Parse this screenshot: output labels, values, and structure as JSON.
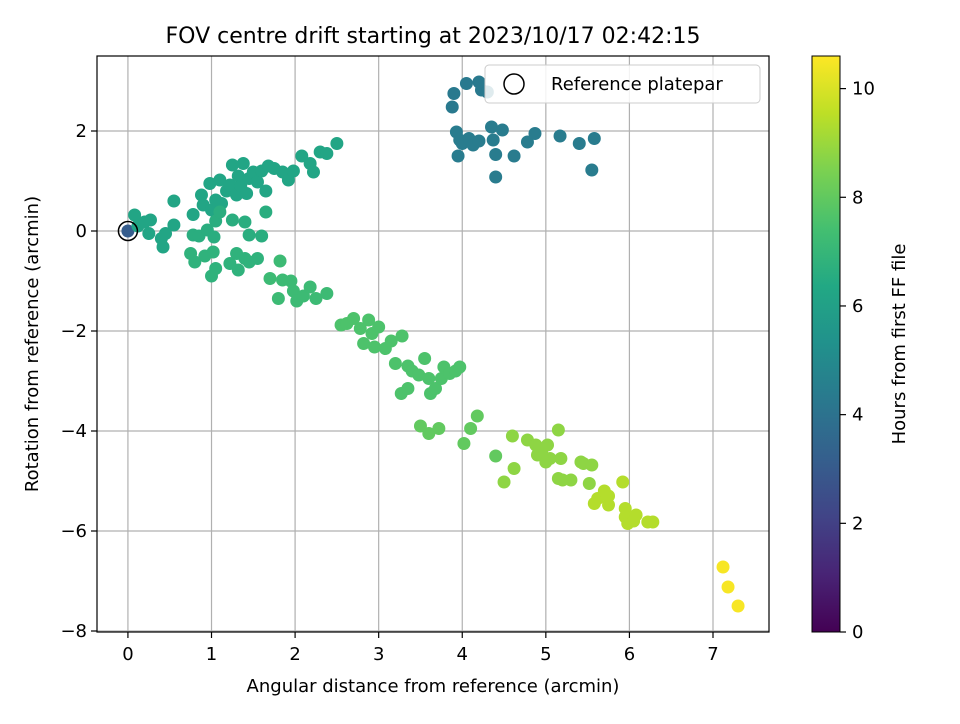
{
  "chart_data": {
    "type": "scatter",
    "title": "FOV centre drift starting at 2023/10/17 02:42:15",
    "xlabel": "Angular distance from reference (arcmin)",
    "ylabel": "Rotation from reference (arcmin)",
    "xlim": [
      -0.37,
      7.67
    ],
    "ylim": [
      -8.02,
      3.5
    ],
    "xticks": [
      "0",
      "1",
      "2",
      "3",
      "4",
      "5",
      "6",
      "7"
    ],
    "yticks": [
      "−8",
      "−6",
      "−4",
      "−2",
      "0",
      "2"
    ],
    "grid": true,
    "legend": {
      "label": "Reference platepar",
      "placement": "top-right"
    },
    "reference_point": {
      "x": 0,
      "y": 0
    },
    "colorbar": {
      "label": "Hours from first FF file",
      "colormap": "viridis",
      "range": [
        0,
        10.6
      ],
      "ticks": [
        "0",
        "2",
        "4",
        "6",
        "8",
        "10"
      ]
    },
    "series": [
      {
        "values": [
          {
            "x": 0.0,
            "y": 0.0,
            "t": 3.1
          },
          {
            "x": 3.9,
            "y": 2.75,
            "t": 4.3
          },
          {
            "x": 3.88,
            "y": 2.48,
            "t": 4.3
          },
          {
            "x": 4.05,
            "y": 2.95,
            "t": 4.3
          },
          {
            "x": 4.2,
            "y": 2.98,
            "t": 4.3
          },
          {
            "x": 4.23,
            "y": 2.82,
            "t": 4.3
          },
          {
            "x": 4.3,
            "y": 2.78,
            "t": 4.3
          },
          {
            "x": 3.93,
            "y": 1.98,
            "t": 4.4
          },
          {
            "x": 3.97,
            "y": 1.82,
            "t": 4.4
          },
          {
            "x": 4.0,
            "y": 1.75,
            "t": 4.4
          },
          {
            "x": 4.08,
            "y": 1.85,
            "t": 4.4
          },
          {
            "x": 4.13,
            "y": 1.72,
            "t": 4.4
          },
          {
            "x": 4.2,
            "y": 1.8,
            "t": 4.4
          },
          {
            "x": 3.95,
            "y": 1.5,
            "t": 4.4
          },
          {
            "x": 4.35,
            "y": 2.08,
            "t": 4.4
          },
          {
            "x": 4.37,
            "y": 1.82,
            "t": 4.4
          },
          {
            "x": 4.48,
            "y": 2.02,
            "t": 4.4
          },
          {
            "x": 4.4,
            "y": 1.53,
            "t": 4.4
          },
          {
            "x": 4.62,
            "y": 1.5,
            "t": 4.4
          },
          {
            "x": 4.4,
            "y": 1.08,
            "t": 4.4
          },
          {
            "x": 4.78,
            "y": 1.78,
            "t": 4.4
          },
          {
            "x": 4.87,
            "y": 1.95,
            "t": 4.4
          },
          {
            "x": 5.17,
            "y": 1.9,
            "t": 4.4
          },
          {
            "x": 5.4,
            "y": 1.75,
            "t": 4.4
          },
          {
            "x": 5.58,
            "y": 1.85,
            "t": 4.4
          },
          {
            "x": 5.55,
            "y": 1.22,
            "t": 4.4
          },
          {
            "x": 0.08,
            "y": 0.32,
            "t": 6.2
          },
          {
            "x": 0.12,
            "y": 0.1,
            "t": 6.2
          },
          {
            "x": 0.2,
            "y": 0.18,
            "t": 6.2
          },
          {
            "x": 0.27,
            "y": 0.22,
            "t": 6.2
          },
          {
            "x": 0.25,
            "y": -0.05,
            "t": 6.2
          },
          {
            "x": 0.4,
            "y": -0.15,
            "t": 6.2
          },
          {
            "x": 0.45,
            "y": -0.05,
            "t": 6.2
          },
          {
            "x": 0.42,
            "y": -0.32,
            "t": 6.2
          },
          {
            "x": 0.55,
            "y": 0.12,
            "t": 6.2
          },
          {
            "x": 0.55,
            "y": 0.6,
            "t": 6.2
          },
          {
            "x": 0.78,
            "y": 0.33,
            "t": 6.2
          },
          {
            "x": 0.88,
            "y": 0.72,
            "t": 6.2
          },
          {
            "x": 0.9,
            "y": 0.52,
            "t": 6.2
          },
          {
            "x": 1.0,
            "y": 0.42,
            "t": 6.2
          },
          {
            "x": 0.98,
            "y": 0.95,
            "t": 6.2
          },
          {
            "x": 1.05,
            "y": 0.62,
            "t": 6.2
          },
          {
            "x": 1.1,
            "y": 1.02,
            "t": 6.2
          },
          {
            "x": 1.12,
            "y": 0.55,
            "t": 6.2
          },
          {
            "x": 1.18,
            "y": 0.8,
            "t": 6.2
          },
          {
            "x": 1.22,
            "y": 0.92,
            "t": 6.2
          },
          {
            "x": 1.25,
            "y": 1.32,
            "t": 6.2
          },
          {
            "x": 1.3,
            "y": 0.72,
            "t": 6.2
          },
          {
            "x": 1.32,
            "y": 1.1,
            "t": 6.2
          },
          {
            "x": 1.35,
            "y": 0.9,
            "t": 6.2
          },
          {
            "x": 1.38,
            "y": 1.35,
            "t": 6.2
          },
          {
            "x": 1.42,
            "y": 0.75,
            "t": 6.2
          },
          {
            "x": 1.45,
            "y": 1.05,
            "t": 6.2
          },
          {
            "x": 1.5,
            "y": 1.18,
            "t": 6.2
          },
          {
            "x": 1.55,
            "y": 0.98,
            "t": 6.2
          },
          {
            "x": 1.6,
            "y": 1.2,
            "t": 6.2
          },
          {
            "x": 1.65,
            "y": 0.8,
            "t": 6.2
          },
          {
            "x": 1.68,
            "y": 1.3,
            "t": 6.2
          },
          {
            "x": 1.75,
            "y": 1.25,
            "t": 6.2
          },
          {
            "x": 1.85,
            "y": 1.18,
            "t": 6.2
          },
          {
            "x": 1.92,
            "y": 1.02,
            "t": 6.2
          },
          {
            "x": 1.98,
            "y": 1.2,
            "t": 6.2
          },
          {
            "x": 2.08,
            "y": 1.5,
            "t": 6.2
          },
          {
            "x": 2.18,
            "y": 1.35,
            "t": 6.2
          },
          {
            "x": 2.22,
            "y": 1.18,
            "t": 6.2
          },
          {
            "x": 2.3,
            "y": 1.58,
            "t": 6.2
          },
          {
            "x": 2.38,
            "y": 1.55,
            "t": 6.2
          },
          {
            "x": 2.5,
            "y": 1.75,
            "t": 6.2
          },
          {
            "x": 1.05,
            "y": 0.2,
            "t": 6.6
          },
          {
            "x": 1.1,
            "y": 0.38,
            "t": 6.6
          },
          {
            "x": 1.25,
            "y": 0.22,
            "t": 6.6
          },
          {
            "x": 1.4,
            "y": 0.18,
            "t": 6.6
          },
          {
            "x": 1.45,
            "y": -0.08,
            "t": 6.6
          },
          {
            "x": 1.6,
            "y": -0.1,
            "t": 6.6
          },
          {
            "x": 1.65,
            "y": 0.38,
            "t": 6.6
          },
          {
            "x": 0.78,
            "y": -0.08,
            "t": 6.6
          },
          {
            "x": 0.85,
            "y": -0.1,
            "t": 6.6
          },
          {
            "x": 0.95,
            "y": 0.02,
            "t": 6.6
          },
          {
            "x": 1.03,
            "y": -0.12,
            "t": 6.6
          },
          {
            "x": 0.92,
            "y": -0.5,
            "t": 6.8
          },
          {
            "x": 0.75,
            "y": -0.45,
            "t": 6.8
          },
          {
            "x": 0.8,
            "y": -0.62,
            "t": 6.8
          },
          {
            "x": 1.0,
            "y": -0.9,
            "t": 6.8
          },
          {
            "x": 1.02,
            "y": -0.42,
            "t": 6.8
          },
          {
            "x": 1.05,
            "y": -0.75,
            "t": 6.8
          },
          {
            "x": 1.22,
            "y": -0.65,
            "t": 6.8
          },
          {
            "x": 1.3,
            "y": -0.45,
            "t": 6.8
          },
          {
            "x": 1.32,
            "y": -0.78,
            "t": 6.8
          },
          {
            "x": 1.4,
            "y": -0.55,
            "t": 6.8
          },
          {
            "x": 1.45,
            "y": -0.62,
            "t": 6.8
          },
          {
            "x": 1.55,
            "y": -0.55,
            "t": 6.8
          },
          {
            "x": 1.7,
            "y": -0.95,
            "t": 7.2
          },
          {
            "x": 1.82,
            "y": -0.6,
            "t": 7.2
          },
          {
            "x": 1.85,
            "y": -0.98,
            "t": 7.2
          },
          {
            "x": 1.8,
            "y": -1.35,
            "t": 7.2
          },
          {
            "x": 1.95,
            "y": -1.0,
            "t": 7.2
          },
          {
            "x": 1.98,
            "y": -1.2,
            "t": 7.2
          },
          {
            "x": 2.02,
            "y": -1.4,
            "t": 7.2
          },
          {
            "x": 2.1,
            "y": -1.3,
            "t": 7.2
          },
          {
            "x": 2.18,
            "y": -1.12,
            "t": 7.2
          },
          {
            "x": 2.25,
            "y": -1.35,
            "t": 7.2
          },
          {
            "x": 2.38,
            "y": -1.25,
            "t": 7.2
          },
          {
            "x": 2.55,
            "y": -1.88,
            "t": 7.6
          },
          {
            "x": 2.62,
            "y": -1.85,
            "t": 7.6
          },
          {
            "x": 2.7,
            "y": -1.75,
            "t": 7.6
          },
          {
            "x": 2.78,
            "y": -1.95,
            "t": 7.6
          },
          {
            "x": 2.82,
            "y": -2.25,
            "t": 7.6
          },
          {
            "x": 2.88,
            "y": -1.78,
            "t": 7.6
          },
          {
            "x": 2.92,
            "y": -2.05,
            "t": 7.6
          },
          {
            "x": 2.95,
            "y": -2.32,
            "t": 7.6
          },
          {
            "x": 3.0,
            "y": -1.92,
            "t": 7.6
          },
          {
            "x": 3.08,
            "y": -2.35,
            "t": 7.6
          },
          {
            "x": 3.15,
            "y": -2.2,
            "t": 7.6
          },
          {
            "x": 3.2,
            "y": -2.65,
            "t": 7.6
          },
          {
            "x": 3.28,
            "y": -2.1,
            "t": 7.6
          },
          {
            "x": 3.35,
            "y": -2.7,
            "t": 7.6
          },
          {
            "x": 3.4,
            "y": -2.8,
            "t": 7.6
          },
          {
            "x": 3.48,
            "y": -2.88,
            "t": 7.6
          },
          {
            "x": 3.55,
            "y": -2.55,
            "t": 7.6
          },
          {
            "x": 3.6,
            "y": -2.95,
            "t": 7.6
          },
          {
            "x": 3.62,
            "y": -3.25,
            "t": 7.6
          },
          {
            "x": 3.68,
            "y": -3.15,
            "t": 7.6
          },
          {
            "x": 3.75,
            "y": -2.95,
            "t": 7.6
          },
          {
            "x": 3.78,
            "y": -2.72,
            "t": 7.6
          },
          {
            "x": 3.85,
            "y": -2.85,
            "t": 7.6
          },
          {
            "x": 3.92,
            "y": -2.8,
            "t": 7.6
          },
          {
            "x": 3.97,
            "y": -2.72,
            "t": 7.6
          },
          {
            "x": 3.27,
            "y": -3.25,
            "t": 7.6
          },
          {
            "x": 3.35,
            "y": -3.15,
            "t": 7.6
          },
          {
            "x": 3.5,
            "y": -3.9,
            "t": 8.0
          },
          {
            "x": 3.6,
            "y": -4.05,
            "t": 8.0
          },
          {
            "x": 3.72,
            "y": -3.95,
            "t": 8.0
          },
          {
            "x": 4.02,
            "y": -4.25,
            "t": 8.0
          },
          {
            "x": 4.1,
            "y": -3.95,
            "t": 8.0
          },
          {
            "x": 4.18,
            "y": -3.7,
            "t": 8.0
          },
          {
            "x": 4.4,
            "y": -4.5,
            "t": 8.0
          },
          {
            "x": 4.5,
            "y": -5.02,
            "t": 8.8
          },
          {
            "x": 4.6,
            "y": -4.1,
            "t": 8.8
          },
          {
            "x": 4.62,
            "y": -4.75,
            "t": 8.8
          },
          {
            "x": 4.78,
            "y": -4.18,
            "t": 8.8
          },
          {
            "x": 4.88,
            "y": -4.28,
            "t": 8.8
          },
          {
            "x": 4.9,
            "y": -4.48,
            "t": 8.8
          },
          {
            "x": 4.95,
            "y": -4.4,
            "t": 8.8
          },
          {
            "x": 5.0,
            "y": -4.62,
            "t": 8.8
          },
          {
            "x": 5.02,
            "y": -4.28,
            "t": 8.8
          },
          {
            "x": 5.05,
            "y": -4.55,
            "t": 8.8
          },
          {
            "x": 5.15,
            "y": -3.98,
            "t": 8.8
          },
          {
            "x": 5.18,
            "y": -4.55,
            "t": 8.8
          },
          {
            "x": 5.15,
            "y": -4.95,
            "t": 8.8
          },
          {
            "x": 5.2,
            "y": -4.98,
            "t": 8.8
          },
          {
            "x": 5.3,
            "y": -4.98,
            "t": 8.8
          },
          {
            "x": 5.42,
            "y": -4.62,
            "t": 8.8
          },
          {
            "x": 5.45,
            "y": -4.65,
            "t": 8.8
          },
          {
            "x": 5.55,
            "y": -4.68,
            "t": 8.8
          },
          {
            "x": 5.52,
            "y": -5.05,
            "t": 8.8
          },
          {
            "x": 5.58,
            "y": -5.45,
            "t": 9.4
          },
          {
            "x": 5.62,
            "y": -5.35,
            "t": 9.4
          },
          {
            "x": 5.7,
            "y": -5.2,
            "t": 9.4
          },
          {
            "x": 5.75,
            "y": -5.48,
            "t": 9.4
          },
          {
            "x": 5.75,
            "y": -5.3,
            "t": 9.4
          },
          {
            "x": 5.92,
            "y": -5.02,
            "t": 9.4
          },
          {
            "x": 5.95,
            "y": -5.55,
            "t": 9.4
          },
          {
            "x": 5.95,
            "y": -5.72,
            "t": 9.4
          },
          {
            "x": 5.98,
            "y": -5.85,
            "t": 9.4
          },
          {
            "x": 6.05,
            "y": -5.8,
            "t": 9.4
          },
          {
            "x": 6.08,
            "y": -5.68,
            "t": 9.4
          },
          {
            "x": 6.22,
            "y": -5.82,
            "t": 9.4
          },
          {
            "x": 6.28,
            "y": -5.82,
            "t": 9.4
          },
          {
            "x": 7.12,
            "y": -6.72,
            "t": 10.5
          },
          {
            "x": 7.18,
            "y": -7.12,
            "t": 10.5
          },
          {
            "x": 7.3,
            "y": -7.5,
            "t": 10.5
          }
        ]
      }
    ]
  }
}
